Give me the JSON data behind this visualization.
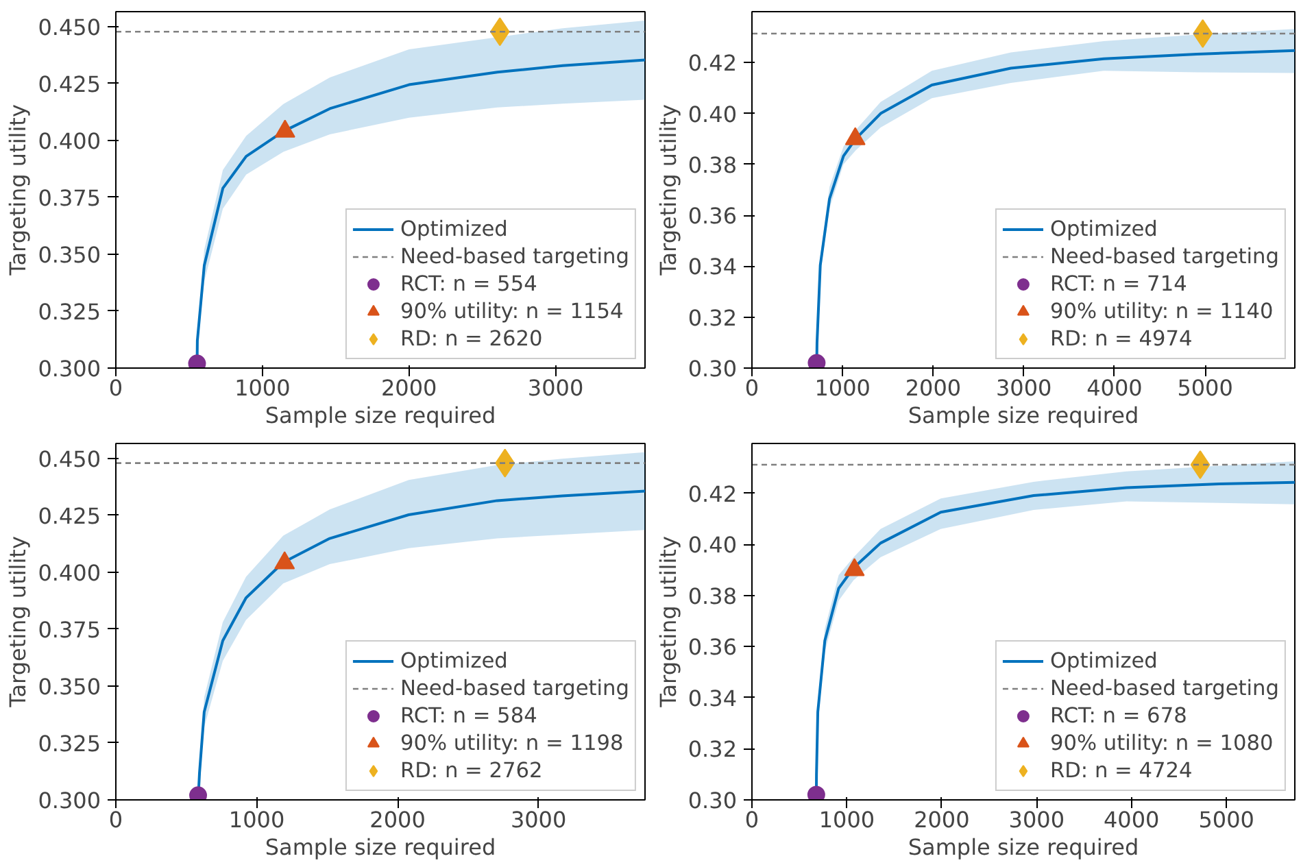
{
  "chart_data": [
    {
      "type": "line",
      "xlabel": "Sample size required",
      "ylabel": "Targeting utility",
      "xlim": [
        0,
        3610
      ],
      "ylim": [
        0.3,
        0.4566
      ],
      "xticks": [
        0,
        1000,
        2000,
        3000
      ],
      "yticks": [
        {
          "value": 0.3,
          "label": "0.300"
        },
        {
          "value": 0.325,
          "label": "0.325"
        },
        {
          "value": 0.35,
          "label": "0.350"
        },
        {
          "value": 0.375,
          "label": "0.375"
        },
        {
          "value": 0.4,
          "label": "0.400"
        },
        {
          "value": 0.425,
          "label": "0.425"
        },
        {
          "value": 0.45,
          "label": "0.450"
        }
      ],
      "legend": "bottom right",
      "grid": false,
      "ref_lines": [
        {
          "axis": "y",
          "value": 0.4478,
          "label": "Need-based targeting",
          "color": "#808080",
          "line_style": "dashed"
        }
      ],
      "series": [
        {
          "name": "Optimized",
          "color": "#0072bd",
          "x": [
            554,
            556,
            603,
            730,
            889,
            1143,
            1460,
            2000,
            2603,
            3048,
            3610
          ],
          "values": [
            0.3,
            0.312,
            0.345,
            0.379,
            0.393,
            0.404,
            0.414,
            0.4245,
            0.43,
            0.4329,
            0.4354
          ],
          "lower": [
            0.3,
            0.311,
            0.338,
            0.37,
            0.385,
            0.395,
            0.4027,
            0.41,
            0.4145,
            0.4162,
            0.4179
          ],
          "upper": [
            0.3,
            0.313,
            0.352,
            0.387,
            0.402,
            0.416,
            0.4277,
            0.44,
            0.4454,
            0.4493,
            0.4527
          ]
        },
        {
          "name": "RCT: n = 554",
          "type": "scatter",
          "marker": "circle",
          "color": "#7e2f8e",
          "x": [
            554
          ],
          "values": [
            0.302
          ]
        },
        {
          "name": "90% utility: n = 1154",
          "type": "scatter",
          "marker": "triangle",
          "color": "#d95319",
          "x": [
            1154
          ],
          "values": [
            0.404
          ]
        },
        {
          "name": "RD: n = 2620",
          "type": "scatter",
          "marker": "diamond",
          "color": "#edb120",
          "x": [
            2620
          ],
          "values": [
            0.4478
          ]
        }
      ]
    },
    {
      "type": "line",
      "xlabel": "Sample size required",
      "ylabel": "Targeting utility",
      "xlim": [
        0,
        5990
      ],
      "ylim": [
        0.3,
        0.44
      ],
      "xticks": [
        0,
        1000,
        2000,
        3000,
        4000,
        5000
      ],
      "yticks": [
        {
          "value": 0.3,
          "label": "0.30"
        },
        {
          "value": 0.32,
          "label": "0.32"
        },
        {
          "value": 0.34,
          "label": "0.34"
        },
        {
          "value": 0.36,
          "label": "0.36"
        },
        {
          "value": 0.38,
          "label": "0.38"
        },
        {
          "value": 0.4,
          "label": "0.40"
        },
        {
          "value": 0.42,
          "label": "0.42"
        }
      ],
      "legend": "bottom right",
      "grid": false,
      "ref_lines": [
        {
          "axis": "y",
          "value": 0.4314,
          "label": "Need-based targeting",
          "color": "#808080",
          "line_style": "dashed"
        }
      ],
      "series": [
        {
          "name": "Optimized",
          "color": "#0072bd",
          "x": [
            714,
            718,
            754,
            856,
            1010,
            1144,
            1420,
            1985,
            2856,
            3882,
            4908,
            5990
          ],
          "values": [
            0.3,
            0.31,
            0.3404,
            0.3665,
            0.3833,
            0.39,
            0.4,
            0.4112,
            0.4178,
            0.4215,
            0.4233,
            0.4247
          ],
          "lower": [
            0.3,
            0.309,
            0.337,
            0.3628,
            0.38,
            0.3855,
            0.3945,
            0.406,
            0.412,
            0.4168,
            0.4162,
            0.4159
          ],
          "upper": [
            0.3,
            0.311,
            0.344,
            0.3712,
            0.387,
            0.3935,
            0.4045,
            0.4168,
            0.424,
            0.4284,
            0.431,
            0.4332
          ]
        },
        {
          "name": "RCT: n = 714",
          "type": "scatter",
          "marker": "circle",
          "color": "#7e2f8e",
          "x": [
            714
          ],
          "values": [
            0.302
          ]
        },
        {
          "name": "90% utility: n = 1140",
          "type": "scatter",
          "marker": "triangle",
          "color": "#d95319",
          "x": [
            1140
          ],
          "values": [
            0.39
          ]
        },
        {
          "name": "RD: n = 4974",
          "type": "scatter",
          "marker": "diamond",
          "color": "#edb120",
          "x": [
            4974
          ],
          "values": [
            0.4314
          ]
        }
      ]
    },
    {
      "type": "line",
      "xlabel": "Sample size required",
      "ylabel": "Targeting utility",
      "xlim": [
        0,
        3756
      ],
      "ylim": [
        0.3,
        0.4565
      ],
      "xticks": [
        0,
        1000,
        2000,
        3000
      ],
      "yticks": [
        {
          "value": 0.3,
          "label": "0.300"
        },
        {
          "value": 0.325,
          "label": "0.325"
        },
        {
          "value": 0.35,
          "label": "0.350"
        },
        {
          "value": 0.375,
          "label": "0.375"
        },
        {
          "value": 0.4,
          "label": "0.400"
        },
        {
          "value": 0.425,
          "label": "0.425"
        },
        {
          "value": 0.45,
          "label": "0.450"
        }
      ],
      "legend": "bottom right",
      "grid": false,
      "ref_lines": [
        {
          "axis": "y",
          "value": 0.4479,
          "label": "Need-based targeting",
          "color": "#808080",
          "line_style": "dashed"
        }
      ],
      "series": [
        {
          "name": "Optimized",
          "color": "#0072bd",
          "x": [
            584,
            594,
            627,
            759,
            924,
            1188,
            1518,
            2079,
            2706,
            3168,
            3756
          ],
          "values": [
            0.3,
            0.312,
            0.3386,
            0.3699,
            0.3887,
            0.4043,
            0.4148,
            0.4252,
            0.4314,
            0.4335,
            0.4356
          ],
          "lower": [
            0.3,
            0.311,
            0.332,
            0.361,
            0.379,
            0.395,
            0.4035,
            0.4105,
            0.4148,
            0.4165,
            0.4185
          ],
          "upper": [
            0.3,
            0.313,
            0.345,
            0.378,
            0.398,
            0.416,
            0.4275,
            0.4405,
            0.447,
            0.4498,
            0.4527
          ]
        },
        {
          "name": "RCT: n = 584",
          "type": "scatter",
          "marker": "circle",
          "color": "#7e2f8e",
          "x": [
            584
          ],
          "values": [
            0.302
          ]
        },
        {
          "name": "90% utility: n = 1198",
          "type": "scatter",
          "marker": "triangle",
          "color": "#d95319",
          "x": [
            1198
          ],
          "values": [
            0.404
          ]
        },
        {
          "name": "RD: n = 2762",
          "type": "scatter",
          "marker": "diamond",
          "color": "#edb120",
          "x": [
            2762
          ],
          "values": [
            0.4479
          ]
        }
      ]
    },
    {
      "type": "line",
      "xlabel": "Sample size required",
      "ylabel": "Targeting utility",
      "xlim": [
        0,
        5721
      ],
      "ylim": [
        0.3,
        0.4395
      ],
      "xticks": [
        0,
        1000,
        2000,
        3000,
        4000,
        5000
      ],
      "yticks": [
        {
          "value": 0.3,
          "label": "0.30"
        },
        {
          "value": 0.32,
          "label": "0.32"
        },
        {
          "value": 0.34,
          "label": "0.34"
        },
        {
          "value": 0.36,
          "label": "0.36"
        },
        {
          "value": 0.38,
          "label": "0.38"
        },
        {
          "value": 0.4,
          "label": "0.40"
        },
        {
          "value": 0.42,
          "label": "0.42"
        }
      ],
      "legend": "bottom right",
      "grid": false,
      "ref_lines": [
        {
          "axis": "y",
          "value": 0.4312,
          "label": "Need-based targeting",
          "color": "#808080",
          "line_style": "dashed"
        }
      ],
      "series": [
        {
          "name": "Optimized",
          "color": "#0072bd",
          "x": [
            678,
            680,
            694,
            768,
            914,
            1071,
            1355,
            1990,
            2968,
            3946,
            4924,
            5721
          ],
          "values": [
            0.3,
            0.31,
            0.3344,
            0.3623,
            0.3828,
            0.3908,
            0.4005,
            0.4126,
            0.4191,
            0.4222,
            0.4237,
            0.4243
          ],
          "lower": [
            0.3,
            0.309,
            0.331,
            0.358,
            0.378,
            0.386,
            0.395,
            0.406,
            0.4135,
            0.4168,
            0.4162,
            0.4157
          ],
          "upper": [
            0.3,
            0.311,
            0.338,
            0.367,
            0.388,
            0.395,
            0.406,
            0.418,
            0.4245,
            0.4286,
            0.4308,
            0.4325
          ]
        },
        {
          "name": "RCT: n = 678",
          "type": "scatter",
          "marker": "circle",
          "color": "#7e2f8e",
          "x": [
            678
          ],
          "values": [
            0.302
          ]
        },
        {
          "name": "90% utility: n = 1080",
          "type": "scatter",
          "marker": "triangle",
          "color": "#d95319",
          "x": [
            1080
          ],
          "values": [
            0.39
          ]
        },
        {
          "name": "RD: n = 4724",
          "type": "scatter",
          "marker": "diamond",
          "color": "#edb120",
          "x": [
            4724
          ],
          "values": [
            0.4312
          ]
        }
      ]
    }
  ]
}
